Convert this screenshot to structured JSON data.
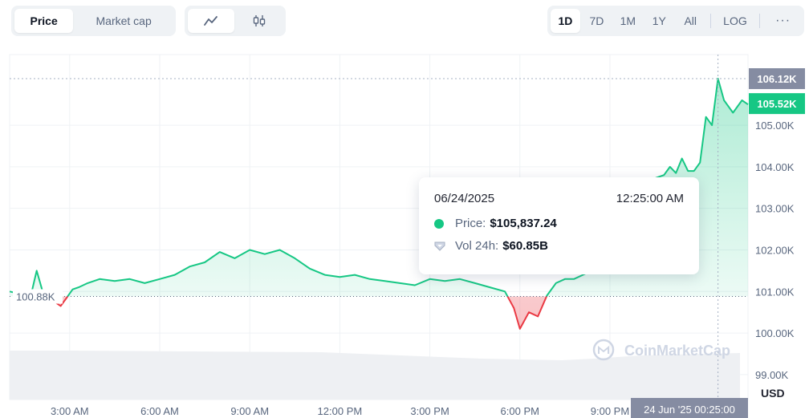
{
  "toolbar": {
    "metric_tabs": [
      "Price",
      "Market cap"
    ],
    "chart_type_icons": [
      "line-chart-icon",
      "candlestick-icon"
    ],
    "ranges": [
      "1D",
      "7D",
      "1M",
      "1Y",
      "All"
    ],
    "log_label": "LOG",
    "more_label": "···"
  },
  "tooltip": {
    "date": "06/24/2025",
    "time": "12:25:00 AM",
    "price_label": "Price:",
    "price_value": "$105,837.24",
    "vol_label": "Vol 24h:",
    "vol_value": "$60.85B"
  },
  "watermark": "CoinMarketCap",
  "currency_label": "USD",
  "open_label": "100.88K",
  "high_badge": "106.12K",
  "current_badge": "105.52K",
  "crosshair_label": "24 Jun '25 00:25:00",
  "colors": {
    "up": "#16c784",
    "down": "#ea3943",
    "high_badge": "#858ca2"
  },
  "chart_data": {
    "type": "line",
    "title": "",
    "xlabel": "",
    "ylabel": "",
    "ylim": [
      98.4,
      106.7
    ],
    "yticks": [
      "99.00K",
      "100.00K",
      "101.00K",
      "102.00K",
      "103.00K",
      "104.00K",
      "105.00K"
    ],
    "ytick_values": [
      99,
      100,
      101,
      102,
      103,
      104,
      105
    ],
    "xticks": [
      "3:00 AM",
      "6:00 AM",
      "9:00 AM",
      "12:00 PM",
      "3:00 PM",
      "6:00 PM",
      "9:00 PM"
    ],
    "xtick_hours": [
      3,
      6,
      9,
      12,
      15,
      18,
      21
    ],
    "baseline": 100.88,
    "high": 106.12,
    "current": 105.52,
    "x_unit": "hours",
    "series": [
      {
        "x": [
          1.0,
          1.7,
          1.9,
          2.1,
          2.3,
          2.5,
          2.7,
          2.9,
          3.1,
          3.3,
          3.6,
          4.0,
          4.5,
          5.0,
          5.5,
          6.0,
          6.5,
          7.0,
          7.5,
          8.0,
          8.5,
          9.0,
          9.5,
          10.0,
          10.5,
          11.0,
          11.5,
          12.0,
          12.5,
          13.0,
          13.5,
          14.0,
          14.5,
          15.0,
          15.5,
          16.0,
          16.5,
          17.0,
          17.5,
          17.8,
          18.0,
          18.3,
          18.6,
          18.9,
          19.2,
          19.5,
          19.8,
          20.1,
          20.4,
          20.8,
          21.2,
          21.6,
          22.0,
          22.4,
          22.8,
          23.0,
          23.2,
          23.4,
          23.6,
          23.8,
          24.0,
          24.2,
          24.4,
          24.6,
          24.8,
          25.1,
          25.4,
          25.6
        ],
        "y": [
          101.0,
          100.88,
          101.5,
          101.0,
          100.8,
          100.75,
          100.65,
          100.85,
          101.05,
          101.1,
          101.2,
          101.3,
          101.25,
          101.3,
          101.2,
          101.3,
          101.4,
          101.6,
          101.7,
          101.95,
          101.8,
          102.0,
          101.9,
          102.0,
          101.8,
          101.55,
          101.4,
          101.35,
          101.4,
          101.3,
          101.25,
          101.2,
          101.15,
          101.3,
          101.25,
          101.3,
          101.2,
          101.1,
          101.0,
          100.6,
          100.1,
          100.5,
          100.4,
          100.9,
          101.2,
          101.3,
          101.3,
          101.4,
          101.5,
          101.6,
          102.3,
          103.0,
          103.5,
          103.7,
          103.8,
          104.0,
          103.85,
          104.2,
          103.9,
          103.9,
          104.1,
          105.2,
          105.0,
          106.12,
          105.6,
          105.3,
          105.6,
          105.5
        ]
      }
    ]
  }
}
